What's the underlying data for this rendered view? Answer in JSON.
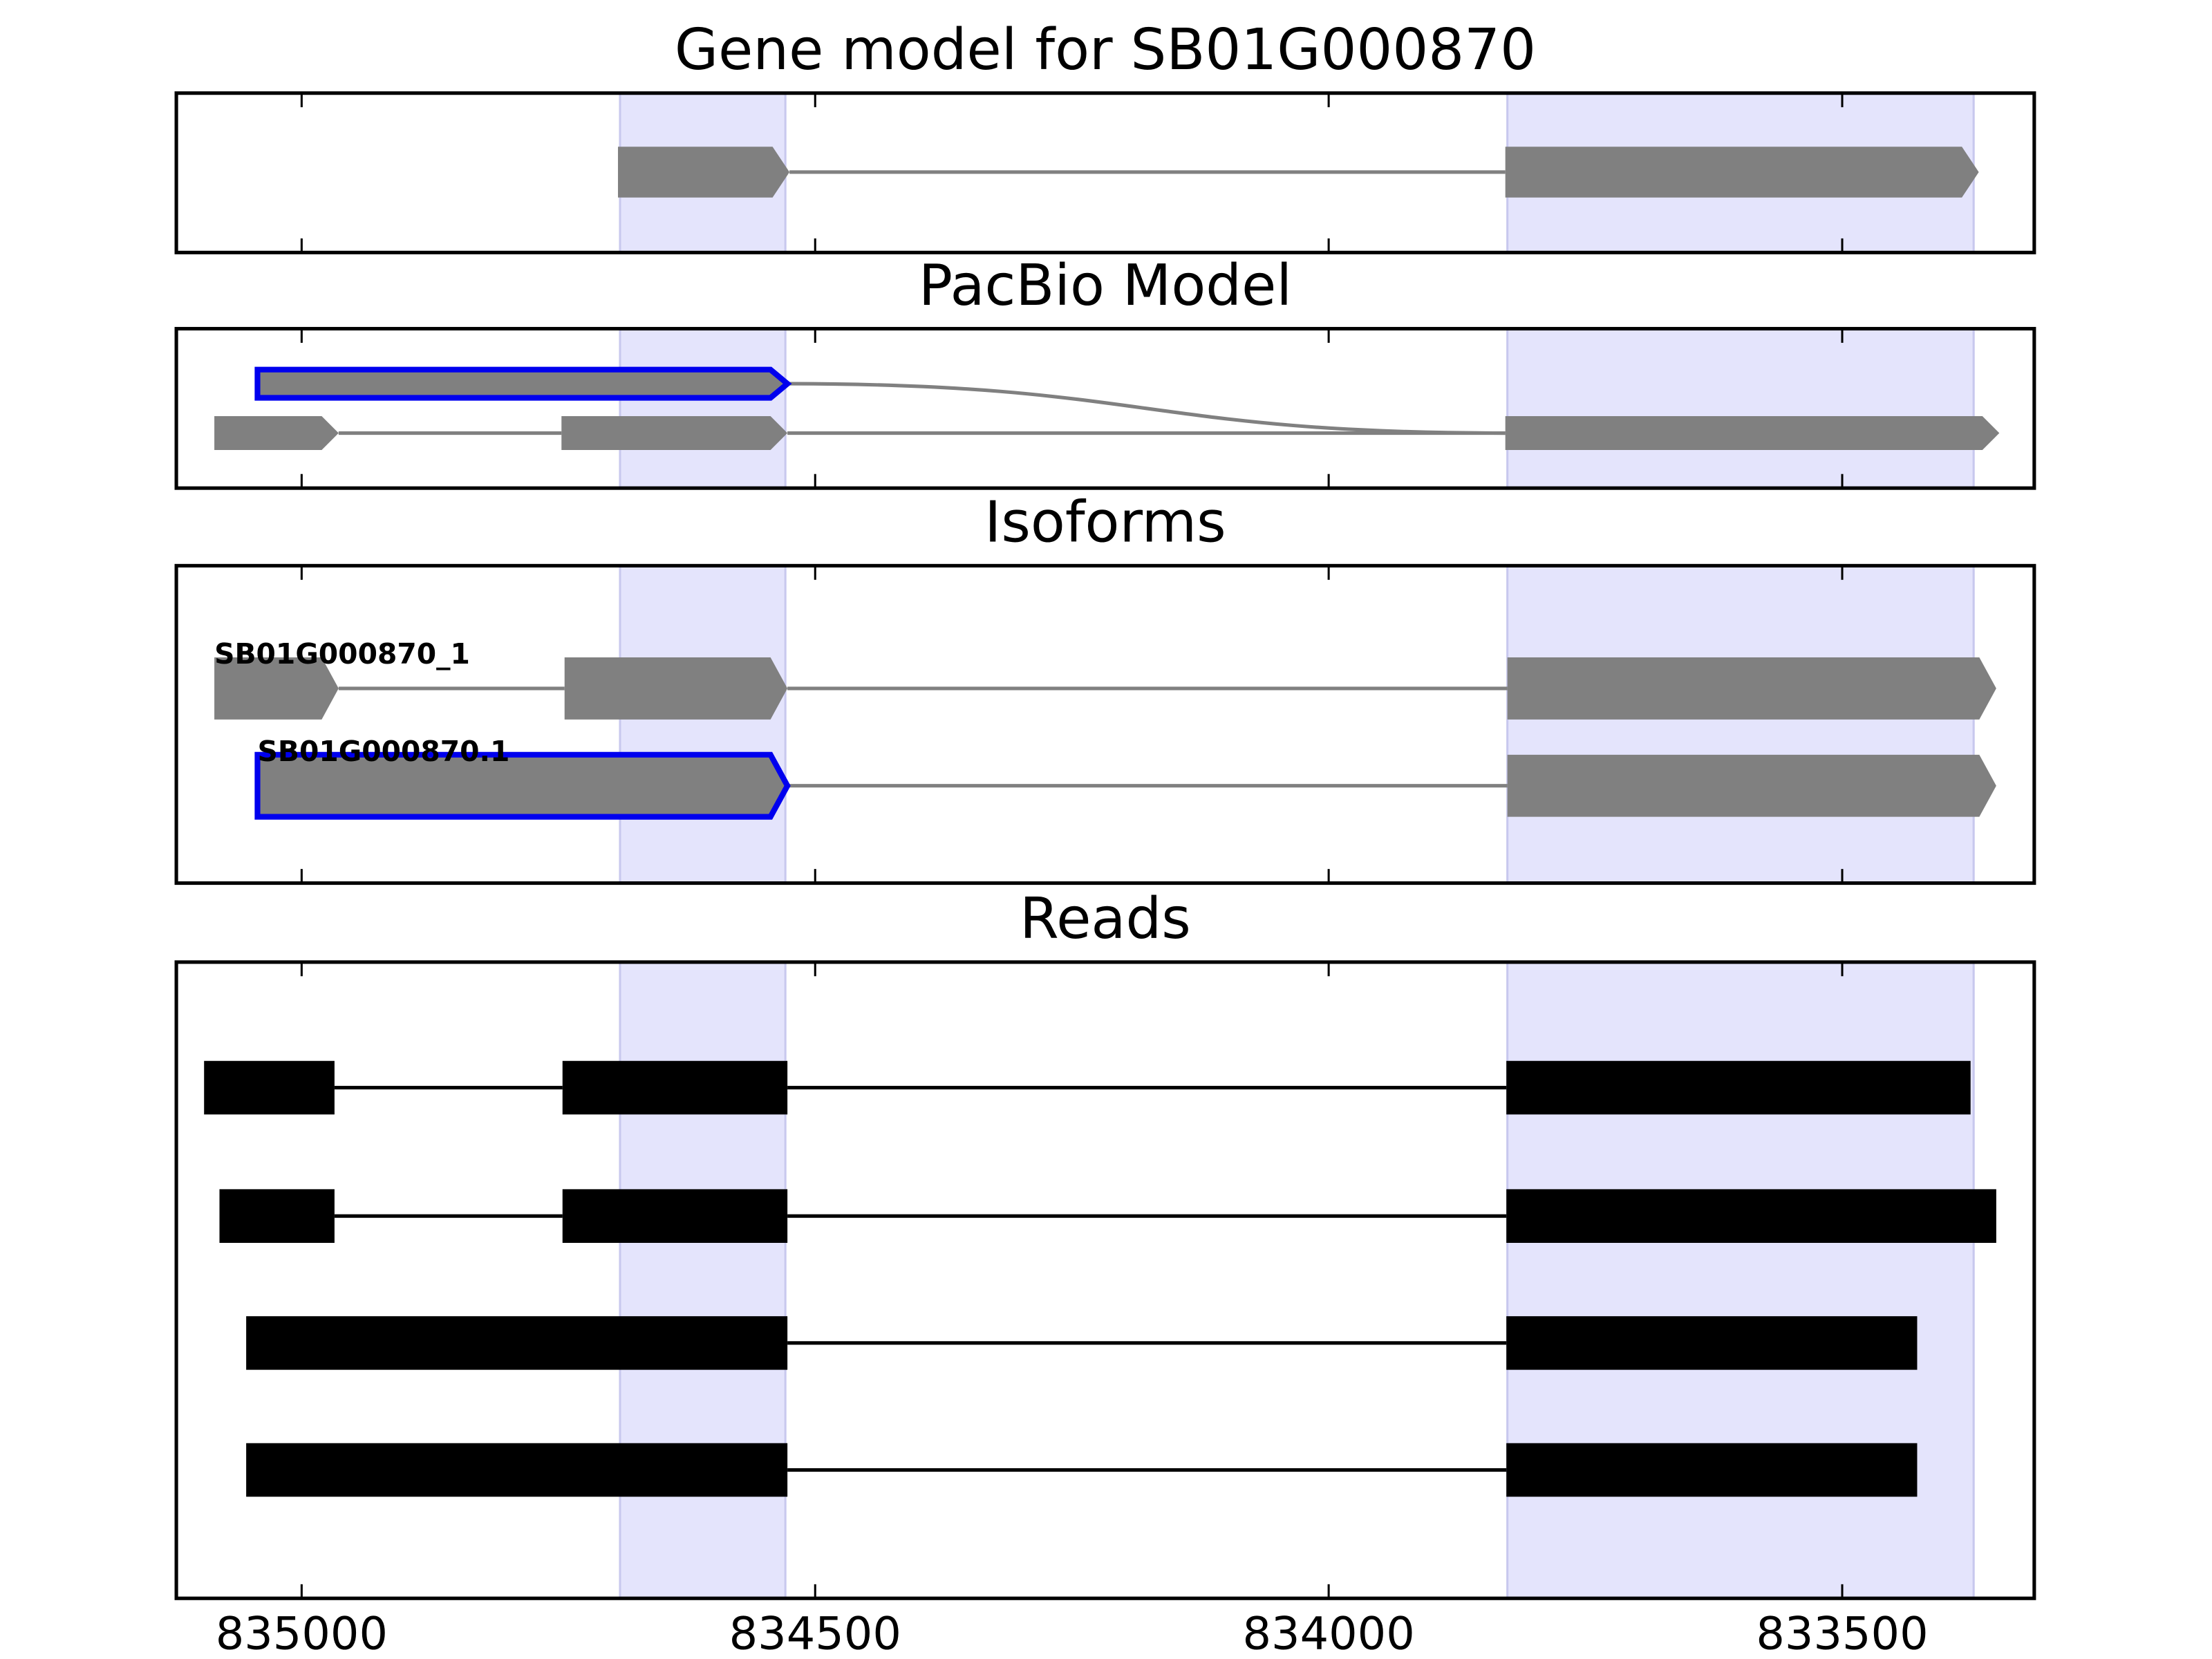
{
  "chart_data": [
    {
      "type": "gene",
      "title": "Gene model for SB01G000870",
      "shape": "arrow",
      "color": "#808080",
      "line_color": "#808080",
      "xlim": [
        835122,
        833313
      ],
      "xticks": [
        835000,
        834500,
        834000,
        833500
      ],
      "shaded": [
        [
          834690,
          834529
        ],
        [
          833826,
          833372
        ]
      ],
      "shade_color": "#e4e4fc",
      "tracks": [
        {
          "exons": [
            [
              834692,
              834525
            ],
            [
              833828,
              833367
            ]
          ]
        }
      ]
    },
    {
      "type": "gene",
      "title": "PacBio Model",
      "shape": "arrow",
      "color": "#808080",
      "line_color": "#808080",
      "outline_color": "#0000ee",
      "xlim": [
        835122,
        833313
      ],
      "xticks": [
        835000,
        834500,
        834000,
        833500
      ],
      "shaded": [
        [
          834690,
          834529
        ],
        [
          833826,
          833372
        ]
      ],
      "shade_color": "#e4e4fc",
      "tracks": [
        {
          "exons": [
            [
              835043,
              834527
            ]
          ],
          "outlined_exons": [
            0
          ],
          "joins_track": 1
        },
        {
          "exons": [
            [
              835085,
              834964
            ],
            [
              834747,
              834527
            ],
            [
              833828,
              833347
            ]
          ]
        }
      ]
    },
    {
      "type": "gene",
      "title": "Isoforms",
      "shape": "arrow",
      "color": "#808080",
      "line_color": "#808080",
      "outline_color": "#0000ee",
      "xlim": [
        835122,
        833313
      ],
      "xticks": [
        835000,
        834500,
        834000,
        833500
      ],
      "shaded": [
        [
          834690,
          834529
        ],
        [
          833826,
          833372
        ]
      ],
      "shade_color": "#e4e4fc",
      "tracks": [
        {
          "name": "SB01G000870_1",
          "exons": [
            [
              835085,
              834964
            ],
            [
              834744,
              834527
            ],
            [
              833826,
              833350
            ]
          ]
        },
        {
          "name": "SB01G000870.1",
          "exons": [
            [
              835043,
              834527
            ],
            [
              833826,
              833350
            ]
          ],
          "outlined_exons": [
            0
          ]
        }
      ]
    },
    {
      "type": "gene",
      "title": "Reads",
      "shape": "box",
      "color": "#000000",
      "line_color": "#000000",
      "tick_labels": true,
      "xlim": [
        835122,
        833313
      ],
      "xticks": [
        835000,
        834500,
        834000,
        833500
      ],
      "shaded": [
        [
          834690,
          834529
        ],
        [
          833826,
          833372
        ]
      ],
      "shade_color": "#e4e4fc",
      "tracks": [
        {
          "exons": [
            [
              835095,
              834968
            ],
            [
              834746,
              834527
            ],
            [
              833827,
              833375
            ]
          ]
        },
        {
          "exons": [
            [
              835080,
              834968
            ],
            [
              834746,
              834527
            ],
            [
              833827,
              833350
            ]
          ]
        },
        {
          "exons": [
            [
              835054,
              834527
            ],
            [
              833827,
              833427
            ]
          ]
        },
        {
          "exons": [
            [
              835054,
              834527
            ],
            [
              833827,
              833427
            ]
          ]
        }
      ]
    }
  ]
}
